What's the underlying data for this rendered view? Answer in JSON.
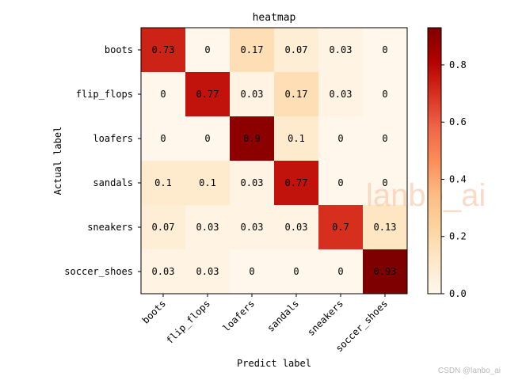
{
  "chart_data": {
    "type": "heatmap",
    "title": "heatmap",
    "xlabel": "Predict label",
    "ylabel": "Actual label",
    "x_categories": [
      "boots",
      "flip_flops",
      "loafers",
      "sandals",
      "sneakers",
      "soccer_shoes"
    ],
    "y_categories": [
      "boots",
      "flip_flops",
      "loafers",
      "sandals",
      "sneakers",
      "soccer_shoes"
    ],
    "values": [
      [
        0.73,
        0.0,
        0.17,
        0.07,
        0.03,
        0.0
      ],
      [
        0.0,
        0.77,
        0.03,
        0.17,
        0.03,
        0.0
      ],
      [
        0.0,
        0.0,
        0.9,
        0.1,
        0.0,
        0.0
      ],
      [
        0.1,
        0.1,
        0.03,
        0.77,
        0.0,
        0.0
      ],
      [
        0.07,
        0.03,
        0.03,
        0.03,
        0.7,
        0.13
      ],
      [
        0.03,
        0.03,
        0.0,
        0.0,
        0.0,
        0.93
      ]
    ],
    "colorbar": {
      "min": 0.0,
      "max": 0.93,
      "ticks": [
        0.0,
        0.2,
        0.4,
        0.6,
        0.8
      ],
      "tick_labels": [
        "0.0",
        "0.2",
        "0.4",
        "0.6",
        "0.8"
      ],
      "colormap": "OrRd",
      "stops": [
        "#fff7ec",
        "#fee8c8",
        "#fdd49e",
        "#fdbb84",
        "#fc8d59",
        "#ef6548",
        "#d7301f",
        "#b30000",
        "#7f0000"
      ]
    }
  },
  "watermark": "lanbo_ai",
  "source_credit": "CSDN @lanbo_ai"
}
